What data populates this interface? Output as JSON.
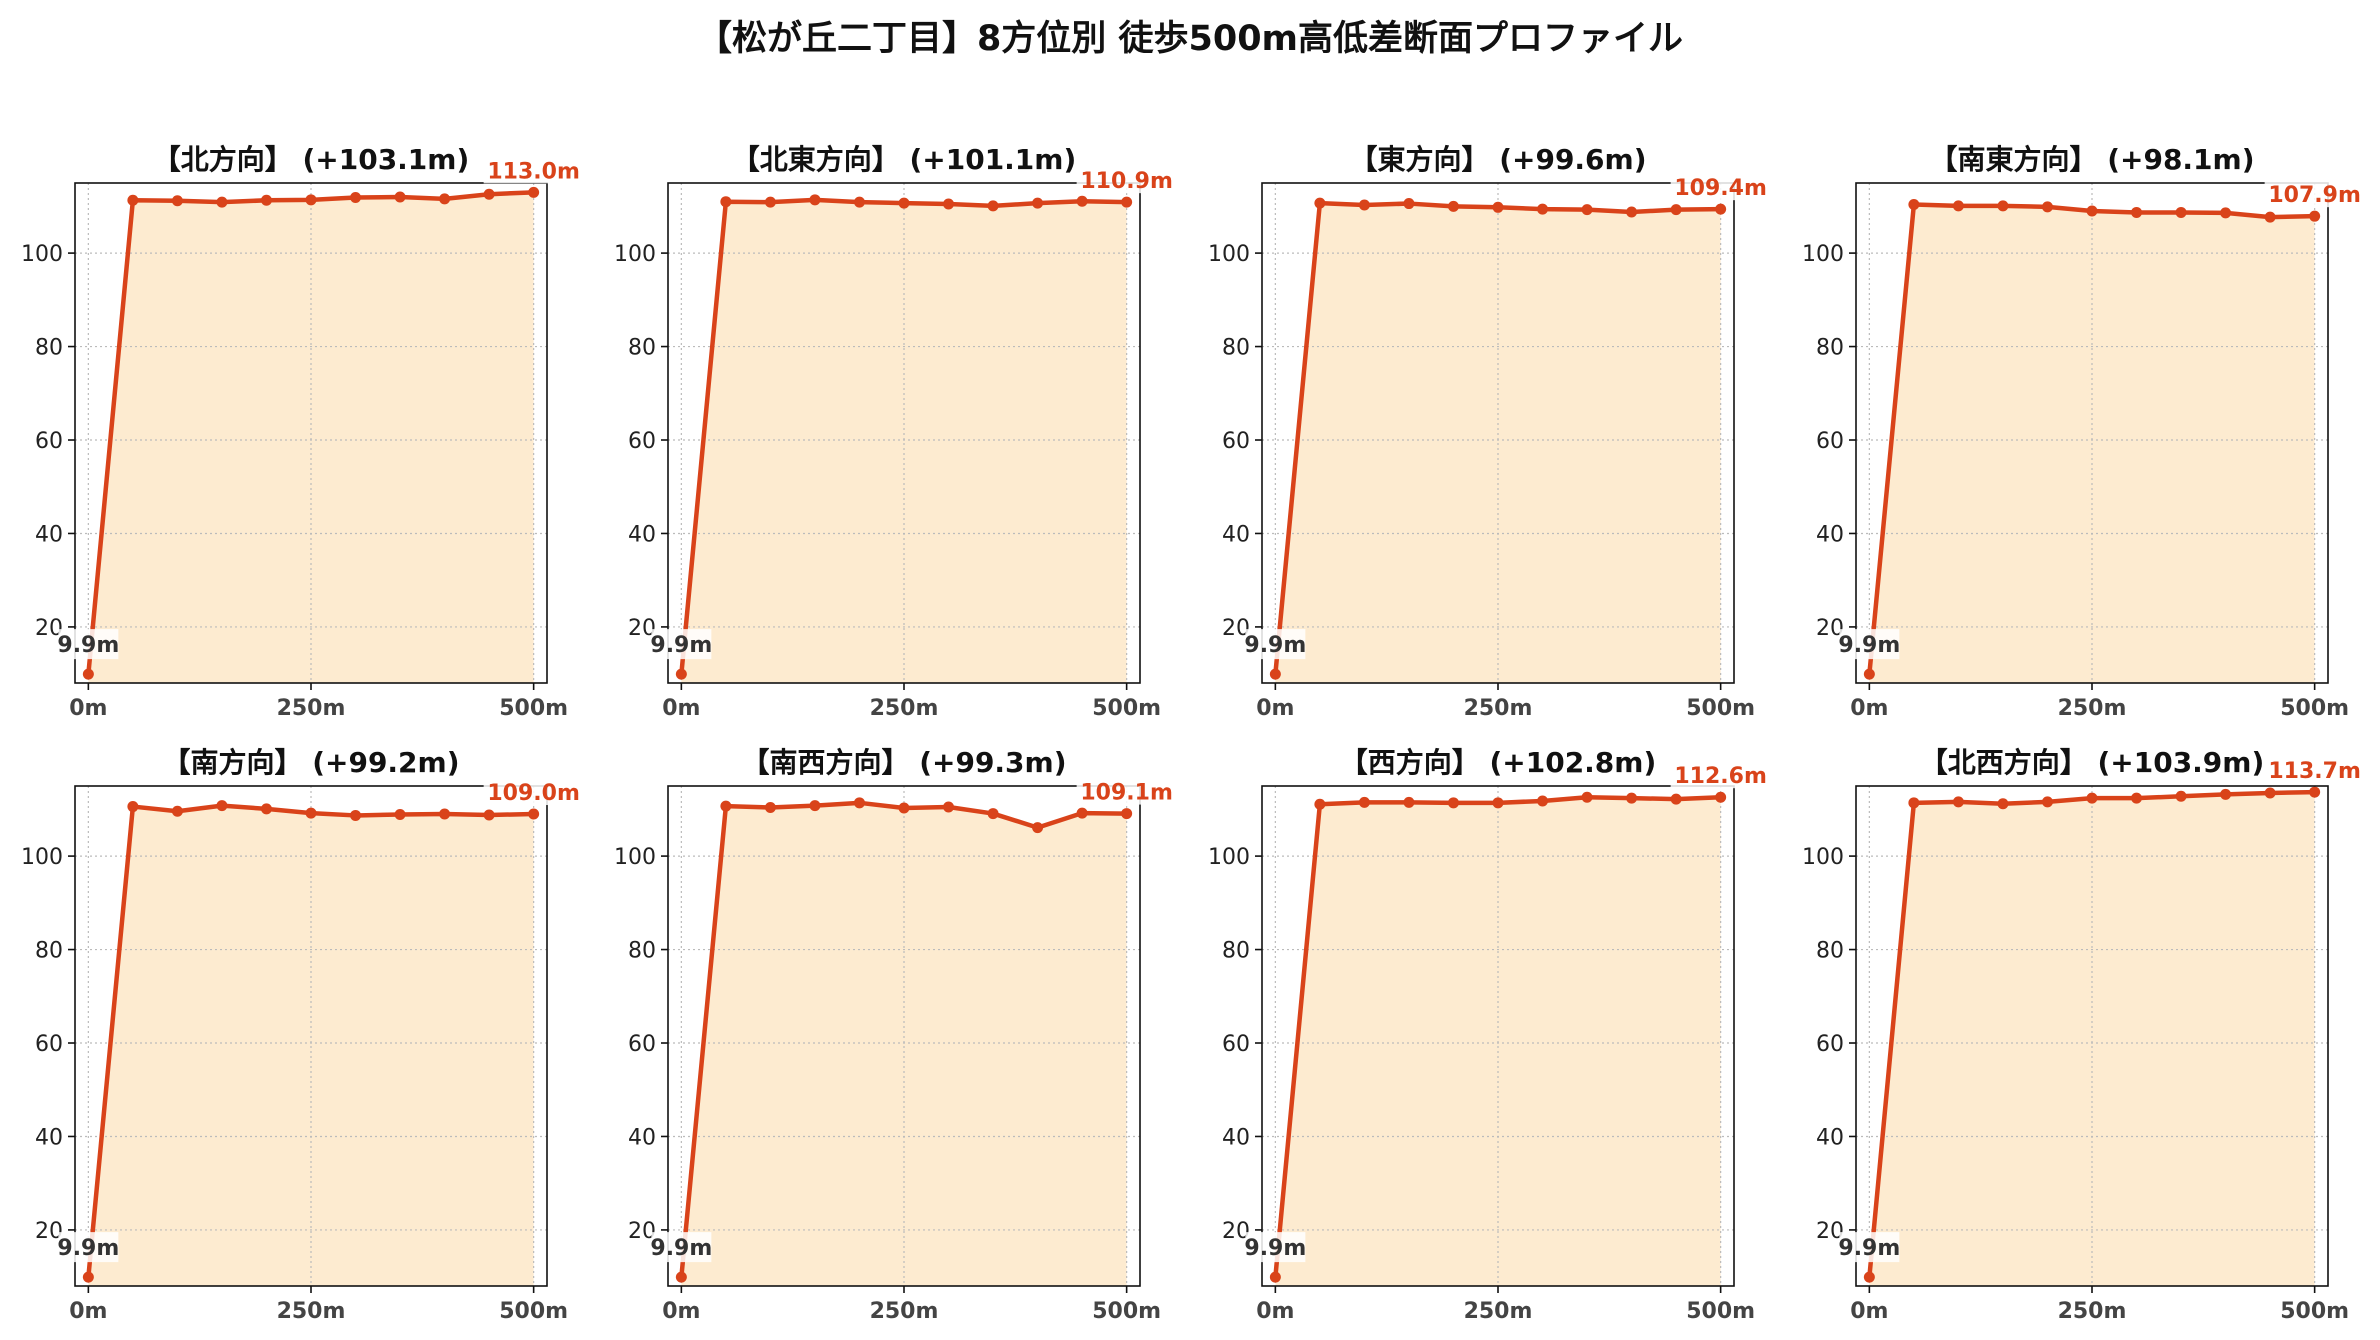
{
  "title": "【松が丘二丁目】8方位別 徒歩500m高低差断面プロファイル",
  "colors": {
    "line": "#d9431a",
    "fill": "#fdebd0",
    "start_label": "#333333",
    "end_label": "#d9431a",
    "grid": "#bbbbbb"
  },
  "chart_data": [
    {
      "type": "area",
      "title": "【北方向】 (+103.1m)",
      "x": [
        0,
        50,
        100,
        150,
        200,
        250,
        300,
        350,
        400,
        450,
        500
      ],
      "y": [
        9.9,
        111.3,
        111.2,
        110.9,
        111.3,
        111.4,
        111.9,
        112.0,
        111.6,
        112.6,
        113.0
      ],
      "xlim": [
        -15,
        515
      ],
      "ylim": [
        8,
        115
      ],
      "x_ticks": [
        0,
        250,
        500
      ],
      "x_tick_labels": [
        "0m",
        "250m",
        "500m"
      ],
      "y_ticks": [
        20,
        40,
        60,
        80,
        100
      ],
      "y_tick_labels": [
        "20",
        "40",
        "60",
        "80",
        "100"
      ],
      "grid": true,
      "start_label": "9.9m",
      "end_label": "113.0m"
    },
    {
      "type": "area",
      "title": "【北東方向】 (+101.1m)",
      "x": [
        0,
        50,
        100,
        150,
        200,
        250,
        300,
        350,
        400,
        450,
        500
      ],
      "y": [
        9.9,
        111.0,
        110.9,
        111.4,
        110.9,
        110.7,
        110.5,
        110.1,
        110.7,
        111.1,
        110.9
      ],
      "xlim": [
        -15,
        515
      ],
      "ylim": [
        8,
        115
      ],
      "x_ticks": [
        0,
        250,
        500
      ],
      "x_tick_labels": [
        "0m",
        "250m",
        "500m"
      ],
      "y_ticks": [
        20,
        40,
        60,
        80,
        100
      ],
      "y_tick_labels": [
        "20",
        "40",
        "60",
        "80",
        "100"
      ],
      "grid": true,
      "start_label": "9.9m",
      "end_label": "110.9m"
    },
    {
      "type": "area",
      "title": "【東方向】 (+99.6m)",
      "x": [
        0,
        50,
        100,
        150,
        200,
        250,
        300,
        350,
        400,
        450,
        500
      ],
      "y": [
        9.9,
        110.7,
        110.3,
        110.6,
        110.0,
        109.8,
        109.4,
        109.3,
        108.8,
        109.3,
        109.4
      ],
      "xlim": [
        -15,
        515
      ],
      "ylim": [
        8,
        115
      ],
      "x_ticks": [
        0,
        250,
        500
      ],
      "x_tick_labels": [
        "0m",
        "250m",
        "500m"
      ],
      "y_ticks": [
        20,
        40,
        60,
        80,
        100
      ],
      "y_tick_labels": [
        "20",
        "40",
        "60",
        "80",
        "100"
      ],
      "grid": true,
      "start_label": "9.9m",
      "end_label": "109.4m"
    },
    {
      "type": "area",
      "title": "【南東方向】 (+98.1m)",
      "x": [
        0,
        50,
        100,
        150,
        200,
        250,
        300,
        350,
        400,
        450,
        500
      ],
      "y": [
        9.9,
        110.4,
        110.1,
        110.1,
        109.9,
        109.0,
        108.7,
        108.7,
        108.6,
        107.7,
        107.9
      ],
      "xlim": [
        -15,
        515
      ],
      "ylim": [
        8,
        115
      ],
      "x_ticks": [
        0,
        250,
        500
      ],
      "x_tick_labels": [
        "0m",
        "250m",
        "500m"
      ],
      "y_ticks": [
        20,
        40,
        60,
        80,
        100
      ],
      "y_tick_labels": [
        "20",
        "40",
        "60",
        "80",
        "100"
      ],
      "grid": true,
      "start_label": "9.9m",
      "end_label": "107.9m"
    },
    {
      "type": "area",
      "title": "【南方向】 (+99.2m)",
      "x": [
        0,
        50,
        100,
        150,
        200,
        250,
        300,
        350,
        400,
        450,
        500
      ],
      "y": [
        9.9,
        110.6,
        109.6,
        110.8,
        110.1,
        109.2,
        108.7,
        108.9,
        109.0,
        108.8,
        109.0
      ],
      "xlim": [
        -15,
        515
      ],
      "ylim": [
        8,
        115
      ],
      "x_ticks": [
        0,
        250,
        500
      ],
      "x_tick_labels": [
        "0m",
        "250m",
        "500m"
      ],
      "y_ticks": [
        20,
        40,
        60,
        80,
        100
      ],
      "y_tick_labels": [
        "20",
        "40",
        "60",
        "80",
        "100"
      ],
      "grid": true,
      "start_label": "9.9m",
      "end_label": "109.0m"
    },
    {
      "type": "area",
      "title": "【南西方向】 (+99.3m)",
      "x": [
        0,
        50,
        100,
        150,
        200,
        250,
        300,
        350,
        400,
        450,
        500
      ],
      "y": [
        9.9,
        110.7,
        110.4,
        110.8,
        111.4,
        110.3,
        110.5,
        109.1,
        106.1,
        109.2,
        109.1
      ],
      "xlim": [
        -15,
        515
      ],
      "ylim": [
        8,
        115
      ],
      "x_ticks": [
        0,
        250,
        500
      ],
      "x_tick_labels": [
        "0m",
        "250m",
        "500m"
      ],
      "y_ticks": [
        20,
        40,
        60,
        80,
        100
      ],
      "y_tick_labels": [
        "20",
        "40",
        "60",
        "80",
        "100"
      ],
      "grid": true,
      "start_label": "9.9m",
      "end_label": "109.1m"
    },
    {
      "type": "area",
      "title": "【西方向】 (+102.8m)",
      "x": [
        0,
        50,
        100,
        150,
        200,
        250,
        300,
        350,
        400,
        450,
        500
      ],
      "y": [
        9.9,
        111.1,
        111.5,
        111.5,
        111.4,
        111.4,
        111.8,
        112.6,
        112.4,
        112.2,
        112.6
      ],
      "xlim": [
        -15,
        515
      ],
      "ylim": [
        8,
        115
      ],
      "x_ticks": [
        0,
        250,
        500
      ],
      "x_tick_labels": [
        "0m",
        "250m",
        "500m"
      ],
      "y_ticks": [
        20,
        40,
        60,
        80,
        100
      ],
      "y_tick_labels": [
        "20",
        "40",
        "60",
        "80",
        "100"
      ],
      "grid": true,
      "start_label": "9.9m",
      "end_label": "112.6m"
    },
    {
      "type": "area",
      "title": "【北西方向】 (+103.9m)",
      "x": [
        0,
        50,
        100,
        150,
        200,
        250,
        300,
        350,
        400,
        450,
        500
      ],
      "y": [
        9.9,
        111.4,
        111.6,
        111.2,
        111.6,
        112.4,
        112.4,
        112.8,
        113.2,
        113.5,
        113.7
      ],
      "xlim": [
        -15,
        515
      ],
      "ylim": [
        8,
        115
      ],
      "x_ticks": [
        0,
        250,
        500
      ],
      "x_tick_labels": [
        "0m",
        "250m",
        "500m"
      ],
      "y_ticks": [
        20,
        40,
        60,
        80,
        100
      ],
      "y_tick_labels": [
        "20",
        "40",
        "60",
        "80",
        "100"
      ],
      "grid": true,
      "start_label": "9.9m",
      "end_label": "113.7m"
    }
  ]
}
